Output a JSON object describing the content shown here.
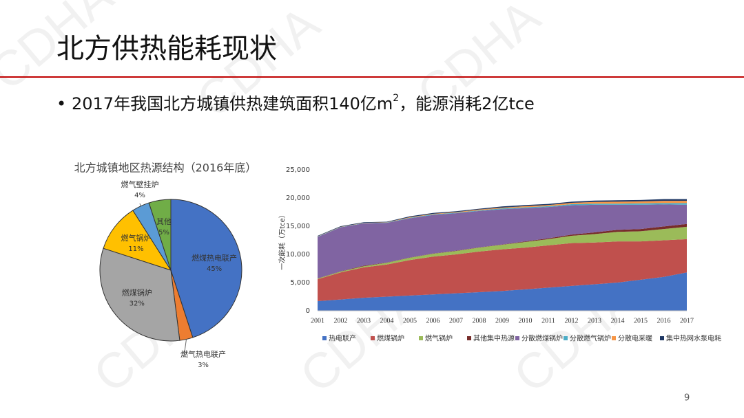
{
  "slide_title": "北方供热能耗现状",
  "bullet": {
    "text": "2017年我国北方城镇供热建筑面积140亿m",
    "sup": "2",
    "tail": "，能源消耗2亿tce"
  },
  "watermark": "CDHA",
  "page_number": "9",
  "chart_data": [
    {
      "type": "pie",
      "title": "北方城镇地区热源结构（2016年底）",
      "categories": [
        "燃煤热电联产",
        "燃气热电联产",
        "燃煤锅炉",
        "燃气锅炉",
        "燃气壁挂炉",
        "其他"
      ],
      "values": [
        45,
        3,
        32,
        11,
        4,
        5
      ],
      "value_labels": [
        "45%",
        "3%",
        "32%",
        "11%",
        "4%",
        "5%"
      ],
      "colors": [
        "#4472c4",
        "#ed7d31",
        "#a5a5a5",
        "#ffc000",
        "#5b9bd5",
        "#70ad47"
      ]
    },
    {
      "type": "stacked_area",
      "y_label": "一次能耗（万tce）",
      "categories": [
        "2001",
        "2002",
        "2003",
        "2004",
        "2005",
        "2006",
        "2007",
        "2008",
        "2009",
        "2010",
        "2011",
        "2012",
        "2013",
        "2014",
        "2015",
        "2016",
        "2017"
      ],
      "ylim": [
        0,
        25000
      ],
      "yticks": [
        {
          "value": 0,
          "label": "0"
        },
        {
          "value": 5000,
          "label": "5,000"
        },
        {
          "value": 10000,
          "label": "10,000"
        },
        {
          "value": 15000,
          "label": "15,000"
        },
        {
          "value": 20000,
          "label": "20,000"
        },
        {
          "value": 25000,
          "label": "25,000"
        }
      ],
      "series": [
        {
          "name": "热电联产",
          "color": "#4472c4",
          "values": [
            1700,
            2000,
            2300,
            2500,
            2700,
            2900,
            3100,
            3300,
            3500,
            3800,
            4100,
            4400,
            4700,
            5000,
            5500,
            6000,
            6800
          ]
        },
        {
          "name": "燃煤锅炉",
          "color": "#c0504d",
          "values": [
            3900,
            4800,
            5400,
            5700,
            6300,
            6700,
            6900,
            7200,
            7400,
            7400,
            7500,
            7600,
            7400,
            7300,
            6800,
            6500,
            5900
          ]
        },
        {
          "name": "燃气锅炉",
          "color": "#9bbb59",
          "values": [
            100,
            150,
            200,
            300,
            400,
            500,
            600,
            700,
            800,
            1000,
            1100,
            1300,
            1500,
            1700,
            1800,
            2000,
            2200
          ]
        },
        {
          "name": "其他集中热源",
          "color": "#772c2a",
          "values": [
            50,
            50,
            100,
            50,
            50,
            50,
            50,
            50,
            50,
            100,
            150,
            200,
            300,
            350,
            400,
            450,
            500
          ]
        },
        {
          "name": "分散燃煤锅炉",
          "color": "#8064a2",
          "values": [
            7350,
            7800,
            7500,
            7050,
            6950,
            6850,
            6650,
            6450,
            6250,
            5900,
            5550,
            5200,
            4900,
            4450,
            4300,
            3900,
            3400
          ]
        },
        {
          "name": "分散燃气锅炉",
          "color": "#4bacc6",
          "values": [
            50,
            50,
            50,
            50,
            100,
            100,
            100,
            100,
            150,
            150,
            150,
            200,
            200,
            200,
            250,
            250,
            300
          ]
        },
        {
          "name": "分散电采暖",
          "color": "#f79646",
          "values": [
            50,
            50,
            50,
            50,
            100,
            100,
            100,
            150,
            150,
            200,
            200,
            250,
            300,
            350,
            350,
            400,
            400
          ]
        },
        {
          "name": "集中热网水泵电耗",
          "color": "#1f3864",
          "values": [
            100,
            100,
            100,
            100,
            150,
            150,
            150,
            150,
            200,
            200,
            200,
            200,
            250,
            250,
            250,
            300,
            300
          ]
        }
      ]
    }
  ]
}
